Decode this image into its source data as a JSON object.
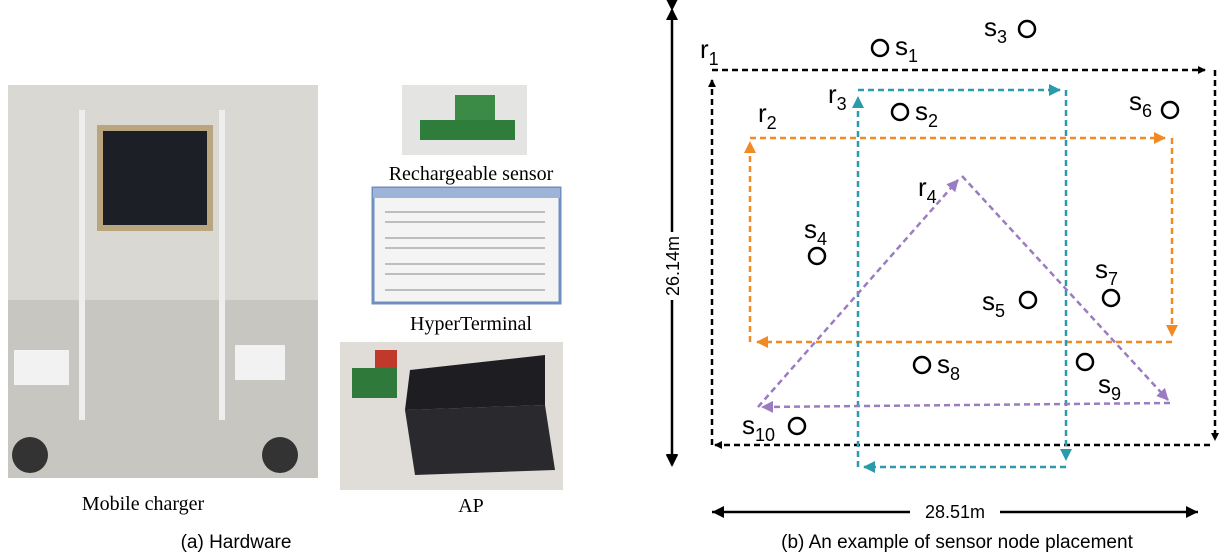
{
  "hardware": {
    "photos": [
      {
        "caption": "Mobile charger"
      },
      {
        "caption": "Rechargeable sensor"
      },
      {
        "caption": "HyperTerminal"
      },
      {
        "caption": "AP"
      }
    ],
    "caption": "(a) Hardware"
  },
  "placement": {
    "caption": "(b) An example of sensor node placement",
    "height_label": "26.14m",
    "width_label": "28.51m",
    "routes": [
      {
        "name": "r",
        "index": "1"
      },
      {
        "name": "r",
        "index": "2"
      },
      {
        "name": "r",
        "index": "3"
      },
      {
        "name": "r",
        "index": "4"
      }
    ],
    "sensors": [
      {
        "name": "s",
        "index": "1"
      },
      {
        "name": "s",
        "index": "2"
      },
      {
        "name": "s",
        "index": "3"
      },
      {
        "name": "s",
        "index": "4"
      },
      {
        "name": "s",
        "index": "5"
      },
      {
        "name": "s",
        "index": "6"
      },
      {
        "name": "s",
        "index": "7"
      },
      {
        "name": "s",
        "index": "8"
      },
      {
        "name": "s",
        "index": "9"
      },
      {
        "name": "s",
        "index": "10"
      }
    ]
  }
}
